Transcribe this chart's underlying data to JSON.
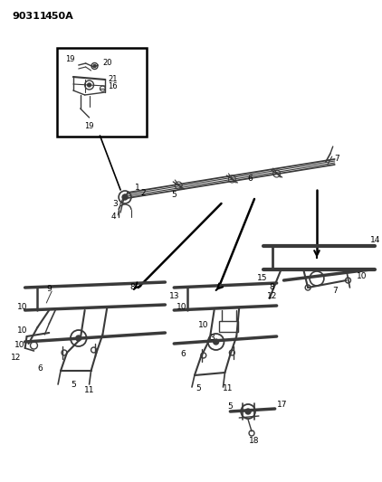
{
  "title": "90311  450A",
  "bg_color": "#ffffff",
  "line_color": "#3a3a3a",
  "fig_width": 4.22,
  "fig_height": 5.33,
  "dpi": 100
}
